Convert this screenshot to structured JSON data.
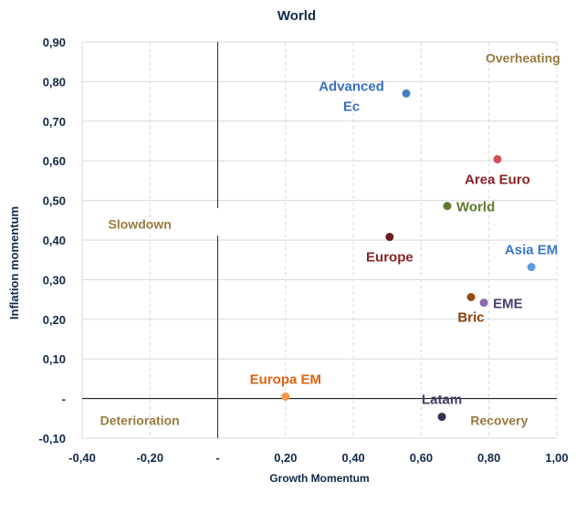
{
  "chart_data": {
    "type": "scatter",
    "title": "World",
    "xlabel": "Growth Momentum",
    "ylabel": "Inflation momentum",
    "xlim": [
      -0.4,
      1.0
    ],
    "ylim": [
      -0.1,
      0.9
    ],
    "grid": true,
    "x_ticks": [
      {
        "v": -0.4,
        "label": "-0,40"
      },
      {
        "v": -0.2,
        "label": "-0,20"
      },
      {
        "v": 0,
        "label": "-"
      },
      {
        "v": 0.2,
        "label": "0,20"
      },
      {
        "v": 0.4,
        "label": "0,40"
      },
      {
        "v": 0.6,
        "label": "0,60"
      },
      {
        "v": 0.8,
        "label": "0,80"
      },
      {
        "v": 1.0,
        "label": "1,00"
      }
    ],
    "y_ticks": [
      {
        "v": -0.1,
        "label": "-0,10"
      },
      {
        "v": 0,
        "label": "-"
      },
      {
        "v": 0.1,
        "label": "0,10"
      },
      {
        "v": 0.2,
        "label": "0,20"
      },
      {
        "v": 0.3,
        "label": "0,30"
      },
      {
        "v": 0.4,
        "label": "0,40"
      },
      {
        "v": 0.5,
        "label": "0,50"
      },
      {
        "v": 0.6,
        "label": "0,60"
      },
      {
        "v": 0.7,
        "label": "0,70"
      },
      {
        "v": 0.8,
        "label": "0,80"
      },
      {
        "v": 0.9,
        "label": "0,90"
      }
    ],
    "points": [
      {
        "name": "Advanced Ec",
        "x": 0.556,
        "y": 0.77,
        "color": "#4a7ec4",
        "label_color": "#3a6fbf",
        "pos": "advanced"
      },
      {
        "name": "Area Euro",
        "x": 0.825,
        "y": 0.604,
        "color": "#d05050",
        "label_color": "#8b2323",
        "pos": "below"
      },
      {
        "name": "World",
        "x": 0.677,
        "y": 0.486,
        "color": "#5f7a30",
        "label_color": "#5f7a30",
        "pos": "right"
      },
      {
        "name": "Europe",
        "x": 0.507,
        "y": 0.408,
        "color": "#6b2020",
        "label_color": "#8b2323",
        "pos": "below"
      },
      {
        "name": "Asia EM",
        "x": 0.925,
        "y": 0.332,
        "color": "#5b9be0",
        "label_color": "#3a78c8",
        "pos": "above"
      },
      {
        "name": "Bric",
        "x": 0.747,
        "y": 0.256,
        "color": "#9a4a10",
        "label_color": "#8a3e08",
        "pos": "below"
      },
      {
        "name": "EME",
        "x": 0.785,
        "y": 0.242,
        "color": "#8a6ab0",
        "label_color": "#4a3a6a",
        "pos": "right"
      },
      {
        "name": "Europa EM",
        "x": 0.2,
        "y": 0.005,
        "color": "#f79646",
        "label_color": "#e06010",
        "pos": "above"
      },
      {
        "name": "Latam",
        "x": 0.661,
        "y": -0.046,
        "color": "#3a2e50",
        "label_color": "#4a3a6a",
        "pos": "above"
      }
    ],
    "quadrants": [
      {
        "label": "Overheating",
        "x": 0.9,
        "y": 0.86
      },
      {
        "label": "Slowdown",
        "x": -0.23,
        "y": 0.44
      },
      {
        "label": "Deterioration",
        "x": -0.23,
        "y": -0.055
      },
      {
        "label": "Recovery",
        "x": 0.83,
        "y": -0.055
      }
    ],
    "quadrant_color": "#9a7a40"
  }
}
